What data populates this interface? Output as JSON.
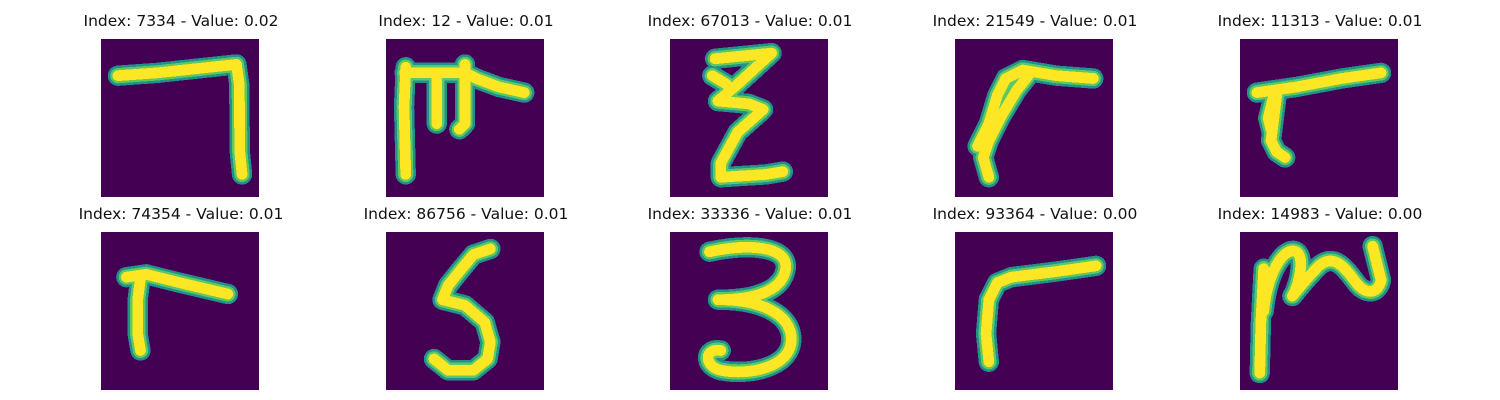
{
  "colors": {
    "background": "#440154",
    "stroke_edge": "#21918c",
    "stroke_mid": "#5ec962",
    "stroke_core": "#fde725"
  },
  "panels": [
    {
      "title": "Index: 7334 - Value: 0.02",
      "glyph": "seven"
    },
    {
      "title": "Index: 12 - Value: 0.01",
      "glyph": "m-shape"
    },
    {
      "title": "Index: 67013 - Value: 0.01",
      "glyph": "z-shape"
    },
    {
      "title": "Index: 21549 - Value: 0.01",
      "glyph": "curved-seven"
    },
    {
      "title": "Index: 11313 - Value: 0.01",
      "glyph": "curved-seven"
    },
    {
      "title": "Index: 74354 - Value: 0.01",
      "glyph": "inverted-l"
    },
    {
      "title": "Index: 86756 - Value: 0.01",
      "glyph": "five"
    },
    {
      "title": "Index: 33336 - Value: 0.01",
      "glyph": "three"
    },
    {
      "title": "Index: 93364 - Value: 0.00",
      "glyph": "inverted-l"
    },
    {
      "title": "Index: 14983 - Value: 0.00",
      "glyph": "squiggle"
    }
  ]
}
